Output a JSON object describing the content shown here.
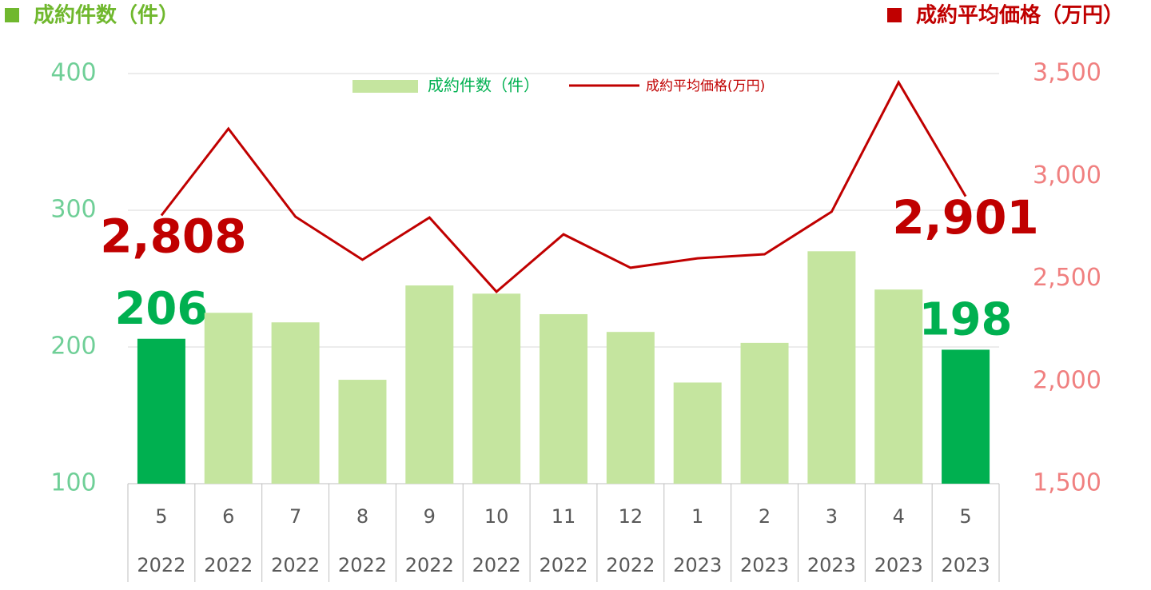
{
  "chart_data": {
    "type": "bar_line",
    "left_title": "成約件数（件）",
    "right_title": "成約平均価格（万円）",
    "categories": [
      "5",
      "6",
      "7",
      "8",
      "9",
      "10",
      "11",
      "12",
      "1",
      "2",
      "3",
      "4",
      "5"
    ],
    "category_years": [
      "2022",
      "2022",
      "2022",
      "2022",
      "2022",
      "2022",
      "2022",
      "2022",
      "2023",
      "2023",
      "2023",
      "2023",
      "2023"
    ],
    "series": [
      {
        "name": "成約件数（件）",
        "type": "bar",
        "color": "#c5e59f",
        "colors": [
          "#00b050",
          "#c5e59f",
          "#c5e59f",
          "#c5e59f",
          "#c5e59f",
          "#c5e59f",
          "#c5e59f",
          "#c5e59f",
          "#c5e59f",
          "#c5e59f",
          "#c5e59f",
          "#c5e59f",
          "#00b050"
        ],
        "values": [
          206,
          225,
          218,
          176,
          245,
          239,
          224,
          211,
          174,
          203,
          270,
          242,
          198
        ],
        "value_labels": [
          "206",
          null,
          null,
          null,
          null,
          null,
          null,
          null,
          null,
          null,
          null,
          null,
          "198"
        ]
      },
      {
        "name": "成約平均価格(万円)",
        "type": "line",
        "axis": "y2",
        "color": "#c00000",
        "values": [
          2808,
          3231,
          2802,
          2592,
          2798,
          2436,
          2716,
          2553,
          2599,
          2619,
          2826,
          3457,
          2901
        ],
        "value_labels": [
          "2,808",
          null,
          null,
          null,
          null,
          null,
          null,
          null,
          null,
          null,
          null,
          null,
          "2,901"
        ]
      }
    ],
    "ylim": [
      100,
      400
    ],
    "yticks": [
      100,
      200,
      300,
      400
    ],
    "y2lim": [
      1500,
      3500
    ],
    "y2ticks": [
      {
        "value": 1500,
        "label": "1,500"
      },
      {
        "value": 2000,
        "label": "2,000"
      },
      {
        "value": 2500,
        "label": "2,500"
      },
      {
        "value": 3000,
        "label": "3,000"
      },
      {
        "value": 3500,
        "label": "3,500"
      }
    ],
    "grid": true
  }
}
